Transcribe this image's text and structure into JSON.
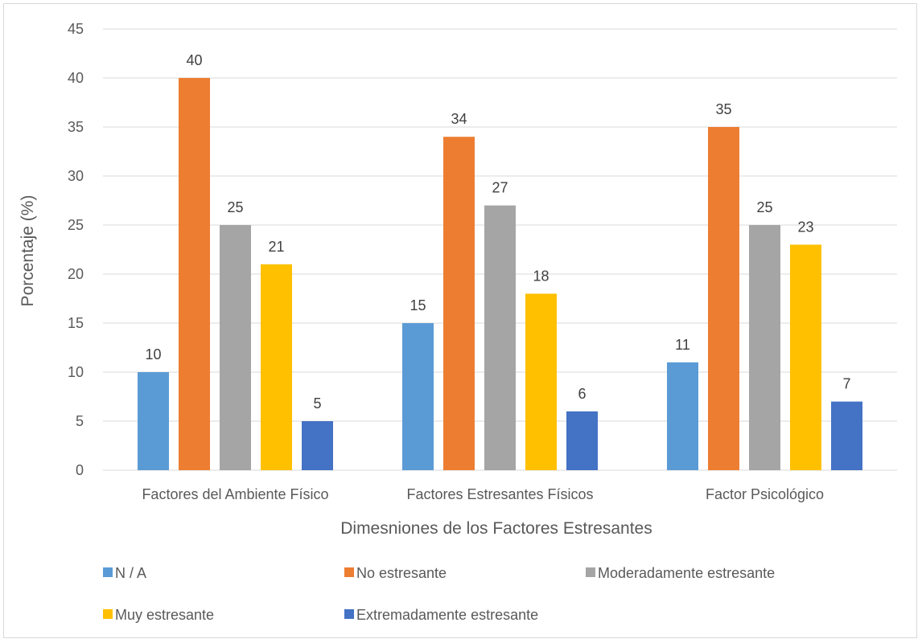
{
  "chart_data": {
    "type": "bar",
    "title": "",
    "xlabel": "Dimesniones de los Factores Estresantes",
    "ylabel": "Porcentaje (%)",
    "ylim": [
      0,
      45
    ],
    "y_ticks": [
      0,
      5,
      10,
      15,
      20,
      25,
      30,
      35,
      40,
      45
    ],
    "grid": true,
    "legend_position": "bottom",
    "categories": [
      "Factores del Ambiente Físico",
      "Factores Estresantes Físicos",
      "Factor Psicológico"
    ],
    "series": [
      {
        "name": "N / A",
        "color": "#5b9bd5",
        "values": [
          10,
          15,
          11
        ]
      },
      {
        "name": "No estresante",
        "color": "#ed7d31",
        "values": [
          40,
          34,
          35
        ]
      },
      {
        "name": "Moderadamente estresante",
        "color": "#a5a5a5",
        "values": [
          25,
          27,
          25
        ]
      },
      {
        "name": "Muy estresante",
        "color": "#ffc000",
        "values": [
          21,
          18,
          23
        ]
      },
      {
        "name": "Extremadamente estresante",
        "color": "#4472c4",
        "values": [
          5,
          6,
          7
        ]
      }
    ]
  }
}
